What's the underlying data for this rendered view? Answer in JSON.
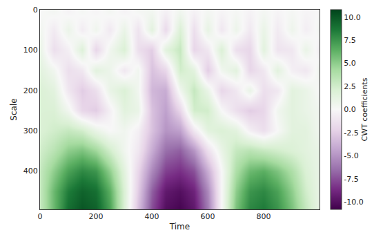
{
  "chart_data": {
    "type": "heatmap",
    "x_label": "Time",
    "y_label": "Scale",
    "x": [
      0,
      50,
      100,
      150,
      200,
      250,
      300,
      350,
      400,
      450,
      500,
      550,
      600,
      650,
      700,
      750,
      800,
      850,
      900,
      950,
      1000
    ],
    "y": [
      5,
      50,
      100,
      150,
      200,
      250,
      300,
      350,
      400,
      450,
      490
    ],
    "z": [
      [
        0,
        0.3,
        -0.3,
        0.2,
        -0.2,
        0.3,
        -0.3,
        0.2,
        0.4,
        -0.5,
        0.5,
        -0.4,
        0.3,
        -0.2,
        0.2,
        -0.3,
        0.3,
        -0.2,
        0.2,
        -0.2,
        0
      ],
      [
        0.5,
        -0.8,
        0.9,
        -0.7,
        0.6,
        -0.9,
        1.0,
        -1.2,
        1.5,
        -1.8,
        2.0,
        -1.5,
        1.2,
        -1.0,
        0.8,
        -0.9,
        1.0,
        -0.8,
        0.7,
        -0.6,
        0.3
      ],
      [
        1.0,
        -1.5,
        -0.5,
        1.8,
        -2.0,
        0.5,
        2.0,
        -1.5,
        -2.5,
        1.5,
        3.0,
        -2.0,
        -1.0,
        2.0,
        -1.5,
        -2.0,
        1.5,
        -1.2,
        -1.0,
        1.0,
        -0.5
      ],
      [
        1.5,
        0.5,
        -1.5,
        -1.0,
        1.5,
        0.8,
        -1.0,
        0.5,
        -3.0,
        -2.0,
        2.5,
        1.5,
        -2.5,
        0.5,
        1.5,
        -2.0,
        -1.0,
        1.5,
        -0.5,
        -1.0,
        0.5
      ],
      [
        2.0,
        1.5,
        -1.0,
        -2.5,
        -1.5,
        1.0,
        2.0,
        0.5,
        -3.5,
        -4.0,
        0.5,
        3.0,
        1.0,
        -2.0,
        -1.0,
        1.0,
        -1.5,
        -1.0,
        1.5,
        1.0,
        0.0
      ],
      [
        2.0,
        2.0,
        0.5,
        -2.0,
        -2.5,
        -0.5,
        1.5,
        1.0,
        -3.0,
        -4.5,
        -2.0,
        2.5,
        2.5,
        0.0,
        -1.5,
        -2.5,
        -2.0,
        0.5,
        1.5,
        1.0,
        0.5
      ],
      [
        2.0,
        2.5,
        3.0,
        2.5,
        1.0,
        0.0,
        0.5,
        -0.5,
        -3.0,
        -5.0,
        -4.5,
        -1.0,
        1.5,
        2.0,
        1.5,
        -0.5,
        -1.5,
        0.0,
        1.5,
        1.5,
        0.5
      ],
      [
        2.5,
        3.5,
        5.0,
        5.5,
        4.5,
        2.5,
        0.5,
        -1.0,
        -4.0,
        -6.5,
        -7.0,
        -5.0,
        -1.5,
        1.0,
        3.0,
        3.5,
        3.0,
        2.5,
        2.0,
        1.5,
        1.0
      ],
      [
        3.0,
        5.0,
        7.0,
        8.0,
        7.5,
        5.0,
        1.5,
        -2.0,
        -5.5,
        -8.0,
        -8.5,
        -7.5,
        -4.0,
        0.0,
        4.0,
        6.0,
        6.5,
        5.5,
        4.0,
        2.0,
        1.0
      ],
      [
        3.0,
        6.0,
        8.5,
        9.5,
        9.0,
        6.5,
        2.0,
        -2.5,
        -7.0,
        -9.5,
        -10.0,
        -9.0,
        -5.5,
        0.0,
        5.0,
        7.5,
        8.0,
        7.0,
        5.0,
        2.5,
        1.0
      ],
      [
        3.0,
        6.0,
        9.0,
        10.0,
        9.5,
        7.0,
        2.0,
        -3.0,
        -7.5,
        -10.0,
        -10.5,
        -9.5,
        -6.0,
        0.0,
        5.5,
        8.0,
        8.5,
        7.5,
        5.5,
        3.0,
        1.0
      ]
    ],
    "xlim": [
      0,
      1000
    ],
    "ylim": [
      495,
      0
    ],
    "xticks": [
      0,
      200,
      400,
      600,
      800
    ],
    "yticks": [
      0,
      100,
      200,
      300,
      400
    ],
    "grid": false,
    "colorbar": {
      "title": "CWT coefficients",
      "range": [
        -10.8,
        10.8
      ],
      "ticks": [
        {
          "value": 10,
          "label": "10.0"
        },
        7.5,
        {
          "value": 5,
          "label": "5.0"
        },
        2.5,
        {
          "value": 0,
          "label": "0.0"
        },
        -2.5,
        {
          "value": -5,
          "label": "-5.0"
        },
        -7.5,
        {
          "value": -10,
          "label": "-10.0"
        }
      ]
    }
  }
}
